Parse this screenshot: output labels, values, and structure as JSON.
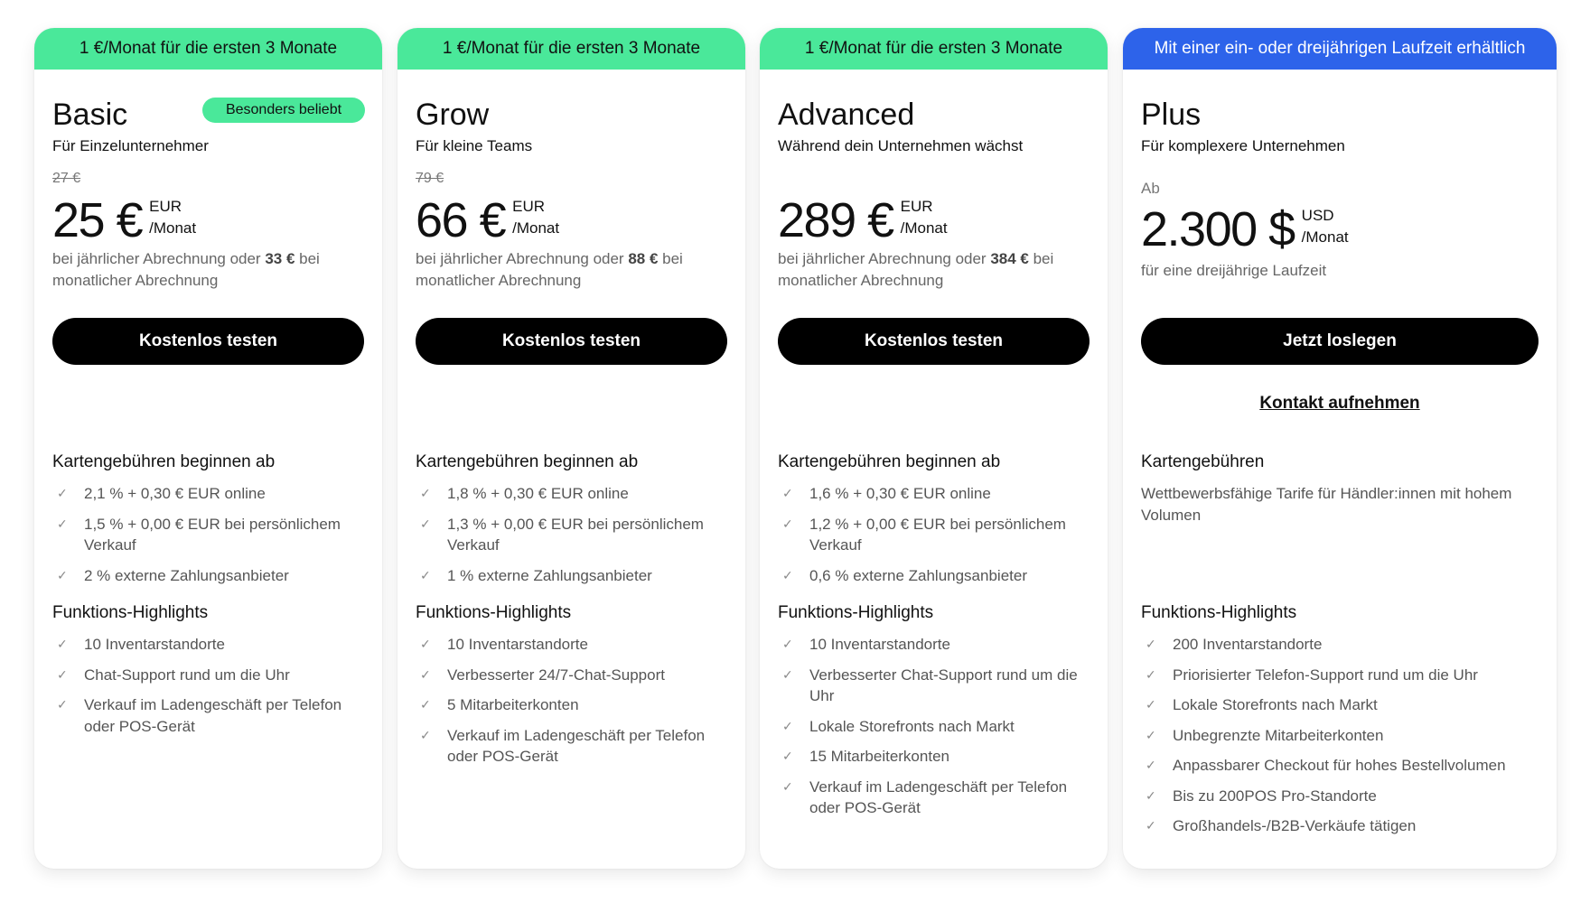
{
  "colors": {
    "promo_green": "#4ae89a",
    "promo_blue": "#2d63ea",
    "button": "#000000"
  },
  "plans": [
    {
      "banner": "1 €/Monat für die ersten 3 Monate",
      "name": "Basic",
      "badge": "Besonders beliebt",
      "tagline": "Für Einzelunternehmer",
      "old_price": "27 €",
      "price": "25 €",
      "currency": "EUR",
      "period": "/Monat",
      "note_a": "bei jährlicher Abrechnung oder ",
      "note_b": "33 €",
      "note_c": " bei monatlicher Abrechnung",
      "cta": "Kostenlos testen",
      "fees_heading": "Kartengebühren beginnen ab",
      "fees": [
        "2,1 % + 0,30 € EUR online",
        "1,5 % + 0,00 € EUR bei persönlichem Verkauf",
        "2 % externe Zahlungsanbieter"
      ],
      "features_heading": "Funktions-Highlights",
      "features": [
        "10 Inventarstandorte",
        "Chat-Support rund um die Uhr",
        "Verkauf im Ladengeschäft per Telefon oder POS-Gerät"
      ]
    },
    {
      "banner": "1 €/Monat für die ersten 3 Monate",
      "name": "Grow",
      "tagline": "Für kleine Teams",
      "old_price": "79 €",
      "price": "66 €",
      "currency": "EUR",
      "period": "/Monat",
      "note_a": "bei jährlicher Abrechnung oder ",
      "note_b": "88 €",
      "note_c": " bei monatlicher Abrechnung",
      "cta": "Kostenlos testen",
      "fees_heading": "Kartengebühren beginnen ab",
      "fees": [
        "1,8 % + 0,30 € EUR online",
        "1,3 % + 0,00 € EUR bei persönlichem Verkauf",
        "1 % externe Zahlungsanbieter"
      ],
      "features_heading": "Funktions-Highlights",
      "features": [
        "10 Inventarstandorte",
        "Verbesserter 24/7-Chat-Support",
        "5 Mitarbeiterkonten",
        "Verkauf im Ladengeschäft per Telefon oder POS-Gerät"
      ]
    },
    {
      "banner": "1 €/Monat für die ersten 3 Monate",
      "name": "Advanced",
      "tagline": "Während dein Unternehmen wächst",
      "price": "289 €",
      "currency": "EUR",
      "period": "/Monat",
      "note_a": "bei jährlicher Abrechnung oder ",
      "note_b": "384 €",
      "note_c": " bei monatlicher Abrechnung",
      "cta": "Kostenlos testen",
      "fees_heading": "Kartengebühren beginnen ab",
      "fees": [
        "1,6 % + 0,30 € EUR online",
        "1,2 % + 0,00 € EUR bei persönlichem Verkauf",
        "0,6 % externe Zahlungsanbieter"
      ],
      "features_heading": "Funktions-Highlights",
      "features": [
        "10 Inventarstandorte",
        "Verbesserter Chat-Support rund um die Uhr",
        "Lokale Storefronts nach Markt",
        "15 Mitarbeiterkonten",
        "Verkauf im Ladengeschäft per Telefon oder POS-Gerät"
      ]
    },
    {
      "banner": "Mit einer ein- oder dreijährigen Laufzeit erhältlich",
      "name": "Plus",
      "tagline": "Für komplexere Unternehmen",
      "from": "Ab",
      "price": "2.300 $",
      "currency": "USD",
      "period": "/Monat",
      "note": "für eine dreijährige Laufzeit",
      "cta": "Jetzt loslegen",
      "contact": "Kontakt aufnehmen",
      "fees_heading": "Kartengebühren",
      "fees_desc": "Wettbewerbsfähige Tarife für Händler:innen mit hohem Volumen",
      "features_heading": "Funktions-Highlights",
      "features": [
        "200 Inventarstandorte",
        "Priorisierter Telefon-Support rund um die Uhr",
        "Lokale Storefronts nach Markt",
        "Unbegrenzte Mitarbeiterkonten",
        "Anpassbarer Checkout für hohes Bestellvolumen",
        "Bis zu 200POS Pro-Standorte",
        "Großhandels-/B2B-Verkäufe tätigen"
      ]
    }
  ]
}
